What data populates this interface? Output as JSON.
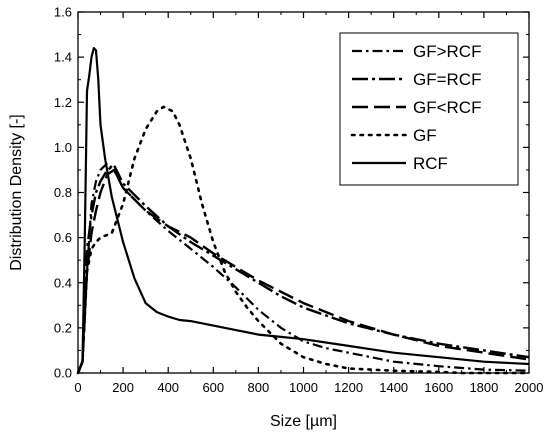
{
  "chart_data": {
    "type": "line",
    "title": "",
    "xlabel": "Size [µm]",
    "ylabel": "Distribution Density [-]",
    "xlim": [
      0,
      2000
    ],
    "ylim": [
      0.0,
      1.6
    ],
    "x_ticks": [
      "0",
      "200",
      "400",
      "600",
      "800",
      "1000",
      "1200",
      "1400",
      "1600",
      "1800",
      "2000"
    ],
    "y_ticks": [
      "0.0",
      "0.2",
      "0.4",
      "0.6",
      "0.8",
      "1.0",
      "1.2",
      "1.4",
      "1.6"
    ],
    "grid": false,
    "legend_position": "top-right",
    "series": [
      {
        "name": "GF>RCF",
        "dash": "dashdot",
        "x": [
          0,
          20,
          40,
          60,
          80,
          100,
          130,
          160,
          200,
          300,
          400,
          500,
          600,
          700,
          800,
          900,
          1000,
          1100,
          1200,
          1300,
          1400,
          1600,
          1800,
          2000
        ],
        "y": [
          0,
          0.05,
          0.45,
          0.75,
          0.85,
          0.9,
          0.93,
          0.9,
          0.82,
          0.72,
          0.63,
          0.55,
          0.47,
          0.38,
          0.28,
          0.2,
          0.14,
          0.11,
          0.09,
          0.07,
          0.05,
          0.03,
          0.015,
          0.01
        ]
      },
      {
        "name": "GF=RCF",
        "dash": "longdashdot",
        "x": [
          0,
          20,
          40,
          60,
          80,
          100,
          130,
          160,
          200,
          300,
          400,
          500,
          600,
          700,
          800,
          900,
          1000,
          1200,
          1400,
          1600,
          1800,
          2000
        ],
        "y": [
          0,
          0.05,
          0.55,
          0.7,
          0.8,
          0.85,
          0.9,
          0.92,
          0.84,
          0.74,
          0.65,
          0.58,
          0.52,
          0.46,
          0.4,
          0.34,
          0.29,
          0.22,
          0.17,
          0.13,
          0.1,
          0.07
        ]
      },
      {
        "name": "GF<RCF",
        "dash": "longdash",
        "x": [
          0,
          20,
          40,
          60,
          80,
          100,
          130,
          160,
          200,
          300,
          400,
          500,
          600,
          700,
          800,
          900,
          1000,
          1200,
          1400,
          1600,
          1800,
          2000
        ],
        "y": [
          0,
          0.05,
          0.45,
          0.62,
          0.72,
          0.8,
          0.88,
          0.9,
          0.82,
          0.72,
          0.65,
          0.6,
          0.53,
          0.47,
          0.41,
          0.36,
          0.31,
          0.23,
          0.17,
          0.12,
          0.09,
          0.06
        ]
      },
      {
        "name": "GF",
        "dash": "dot",
        "x": [
          0,
          20,
          40,
          60,
          80,
          100,
          150,
          200,
          250,
          300,
          350,
          380,
          420,
          450,
          500,
          550,
          600,
          650,
          700,
          750,
          800,
          900,
          1000,
          1100,
          1200,
          1400,
          1600,
          1700,
          2000
        ],
        "y": [
          0,
          0.05,
          0.45,
          0.55,
          0.58,
          0.6,
          0.62,
          0.75,
          0.95,
          1.08,
          1.16,
          1.18,
          1.16,
          1.1,
          0.95,
          0.75,
          0.58,
          0.45,
          0.36,
          0.29,
          0.23,
          0.13,
          0.07,
          0.04,
          0.02,
          0.01,
          0.005,
          0.0,
          0.0
        ]
      },
      {
        "name": "RCF",
        "dash": "solid",
        "x": [
          0,
          20,
          30,
          40,
          50,
          60,
          70,
          80,
          90,
          100,
          120,
          150,
          200,
          250,
          300,
          350,
          400,
          450,
          500,
          600,
          700,
          800,
          900,
          1000,
          1200,
          1400,
          1600,
          1800,
          2000
        ],
        "y": [
          0,
          0.05,
          0.6,
          1.25,
          1.32,
          1.4,
          1.44,
          1.43,
          1.3,
          1.1,
          0.95,
          0.78,
          0.58,
          0.42,
          0.31,
          0.27,
          0.25,
          0.235,
          0.23,
          0.21,
          0.19,
          0.17,
          0.16,
          0.15,
          0.12,
          0.09,
          0.07,
          0.05,
          0.04
        ]
      }
    ]
  }
}
